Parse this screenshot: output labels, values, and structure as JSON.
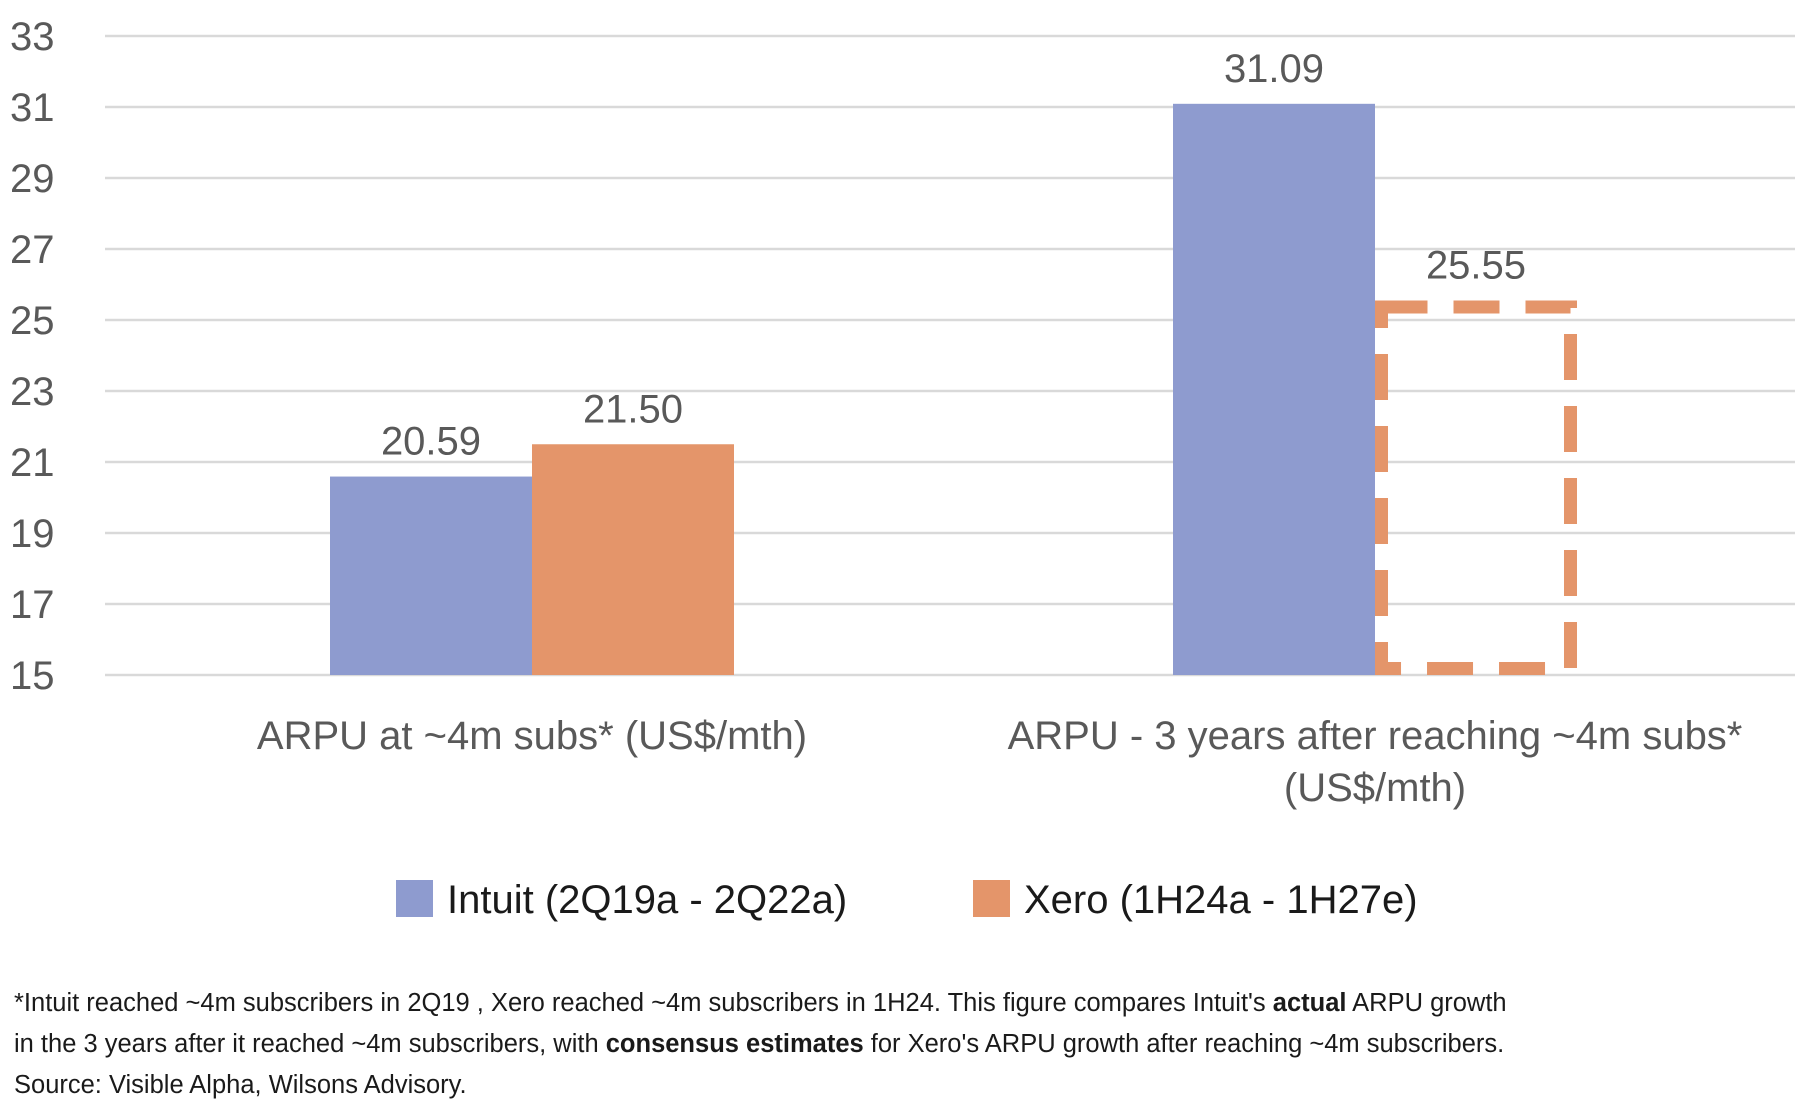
{
  "chart_data": {
    "type": "bar",
    "categories": [
      [
        "ARPU at ~4m subs* (US$/mth)"
      ],
      [
        "ARPU - 3 years after reaching ~4m subs*",
        "(US$/mth)"
      ]
    ],
    "series": [
      {
        "name": "Intuit (2Q19a - 2Q22a)",
        "color": "#8e9bcf",
        "values": [
          20.59,
          31.09
        ],
        "value_labels": [
          "20.59",
          "31.09"
        ],
        "styles": [
          "solid",
          "solid"
        ]
      },
      {
        "name": "Xero (1H24a - 1H27e)",
        "color": "#e4956a",
        "values": [
          21.5,
          25.55
        ],
        "value_labels": [
          "21.50",
          "25.55"
        ],
        "styles": [
          "solid",
          "dashed-outline"
        ]
      }
    ],
    "ylim": [
      15,
      33
    ],
    "yticks": [
      15,
      17,
      19,
      21,
      23,
      25,
      27,
      29,
      31,
      33
    ],
    "grid": true,
    "legend_position": "bottom"
  },
  "footnote": {
    "line1": {
      "part1": "*Intuit reached ~4m subscribers in 2Q19 , Xero reached ~4m subscribers in 1H24. This figure compares Intuit's ",
      "bold1": "actual",
      "part2": " ARPU growth"
    },
    "line2": {
      "part1": "in the 3 years after it reached ~4m subscribers, with ",
      "bold1": "consensus estimates",
      "part2": " for Xero's ARPU growth after reaching ~4m subscribers."
    },
    "line3": "Source: Visible Alpha, Wilsons Advisory."
  }
}
